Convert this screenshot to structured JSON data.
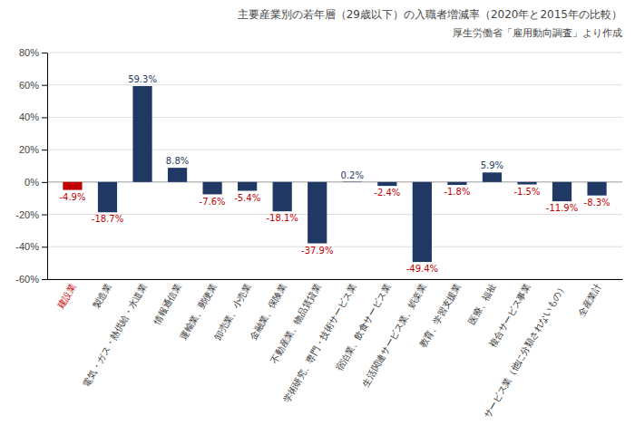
{
  "chart_data": {
    "type": "bar",
    "title": "主要産業別の若年層（29歳以下）の入職者増減率（2020年と2015年の比較）",
    "subtitle": "厚生労働省「雇用動向調査」より作成",
    "categories": [
      "建設業",
      "製造業",
      "電気・ガス・熱供給・水道業",
      "情報通信業",
      "運輸業、郵便業",
      "卸売業、小売業",
      "金融業、保険業",
      "不動産業、物品賃貸業",
      "学術研究、専門・技術サービス業",
      "宿泊業、飲食サービス業",
      "生活関連サービス業、娯楽業",
      "教育、学習支援業",
      "医療、福祉",
      "複合サービス事業",
      "サービス業（他に分類されないもの）",
      "全産業計"
    ],
    "values": [
      -4.9,
      -18.7,
      59.3,
      8.8,
      -7.6,
      -5.4,
      -18.1,
      -37.9,
      0.2,
      -2.4,
      -49.4,
      -1.8,
      5.9,
      -1.5,
      -11.9,
      -8.3
    ],
    "value_labels": [
      "-4.9%",
      "-18.7%",
      "59.3%",
      "8.8%",
      "-7.6%",
      "-5.4%",
      "-18.1%",
      "-37.9%",
      "0.2%",
      "-2.4%",
      "-49.4%",
      "-1.8%",
      "5.9%",
      "-1.5%",
      "-11.9%",
      "-8.3%"
    ],
    "colors": [
      "#c00000",
      "#1f3864",
      "#1f3864",
      "#1f3864",
      "#1f3864",
      "#1f3864",
      "#1f3864",
      "#1f3864",
      "#1f3864",
      "#1f3864",
      "#1f3864",
      "#1f3864",
      "#1f3864",
      "#1f3864",
      "#1f3864",
      "#1f3864"
    ],
    "ylim": [
      -60,
      80
    ],
    "yticks": [
      {
        "value": -60,
        "label": "-60%"
      },
      {
        "value": -40,
        "label": "-40%"
      },
      {
        "value": -20,
        "label": "-20%"
      },
      {
        "value": 0,
        "label": "0%"
      },
      {
        "value": 20,
        "label": "20%"
      },
      {
        "value": 40,
        "label": "40%"
      },
      {
        "value": 60,
        "label": "60%"
      },
      {
        "value": 80,
        "label": "80%"
      }
    ],
    "grid": true,
    "data_labels": true
  }
}
